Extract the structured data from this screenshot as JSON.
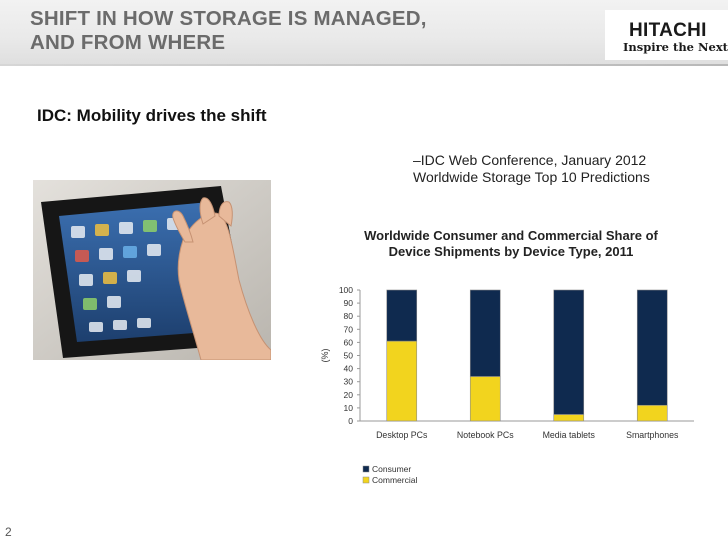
{
  "slide": {
    "title_line1": "SHIFT IN HOW STORAGE IS MANAGED,",
    "title_line2": "AND FROM WHERE",
    "subtitle": "IDC: Mobility drives the shift",
    "source_line1": "–IDC Web Conference, January 2012",
    "source_line2": "Worldwide Storage Top 10 Predictions",
    "page_number": "2"
  },
  "logo": {
    "brand": "HITACHI",
    "tagline": "Inspire the Next"
  },
  "photo": {
    "subject": "hand-touching-tablet-photo"
  },
  "colors": {
    "consumer": "#0f2a4f",
    "commercial": "#f2d41e",
    "title_text": "#6b6b6b"
  },
  "chart_data": {
    "type": "bar",
    "stacked": true,
    "title_line1": "Worldwide Consumer and Commercial Share of",
    "title_line2": "Device Shipments by Device Type, 2011",
    "xlabel": "",
    "ylabel": "(%)",
    "ylim": [
      0,
      100
    ],
    "yticks": [
      0,
      10,
      20,
      30,
      40,
      50,
      60,
      70,
      80,
      90,
      100
    ],
    "categories": [
      "Desktop PCs",
      "Notebook PCs",
      "Media tablets",
      "Smartphones"
    ],
    "series": [
      {
        "name": "Consumer",
        "values": [
          39,
          66,
          95,
          88
        ]
      },
      {
        "name": "Commercial",
        "values": [
          61,
          34,
          5,
          12
        ]
      }
    ],
    "grid": false,
    "legend_position": "bottom-left"
  }
}
